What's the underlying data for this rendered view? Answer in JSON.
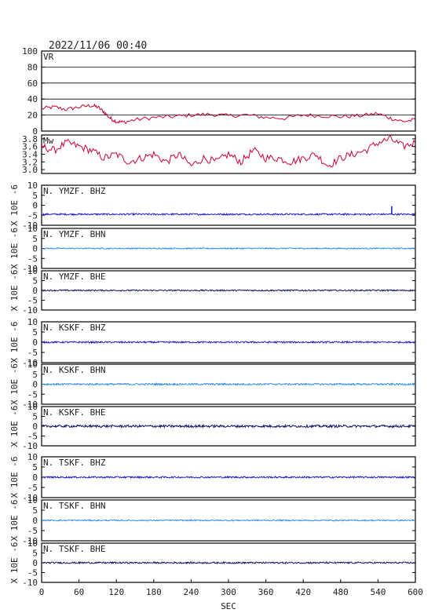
{
  "header": {
    "datetime": "2022/11/06  00:40"
  },
  "x_axis": {
    "label": "SEC",
    "ticks": [
      "0",
      "60",
      "120",
      "180",
      "240",
      "300",
      "360",
      "420",
      "480",
      "540",
      "600"
    ],
    "range": [
      0,
      600
    ]
  },
  "colors": {
    "frame": "#000000",
    "grid": "#000000",
    "vr_line": "#cc0033",
    "mw_line": "#cc0033",
    "bhz": "#1a1acc",
    "bhn": "#2e8ee6",
    "bhe": "#111166"
  },
  "chart_data": [
    {
      "type": "line",
      "label": "VR",
      "ylim": [
        0,
        100
      ],
      "yticks": [
        "0",
        "20",
        "40",
        "60",
        "80",
        "100"
      ],
      "grid": true,
      "x": [
        0,
        20,
        40,
        60,
        80,
        90,
        100,
        110,
        120,
        130,
        150,
        180,
        210,
        240,
        270,
        300,
        330,
        360,
        390,
        420,
        450,
        480,
        510,
        540,
        560,
        580,
        600
      ],
      "values": [
        28,
        30,
        27,
        30,
        32,
        30,
        24,
        16,
        12,
        11,
        14,
        17,
        18,
        20,
        21,
        19,
        20,
        17,
        16,
        20,
        19,
        18,
        19,
        22,
        16,
        12,
        14
      ]
    },
    {
      "type": "line",
      "label": "Mw",
      "ylim": [
        2.9,
        3.9
      ],
      "yticks": [
        "3.0",
        "3.2",
        "3.4",
        "3.6",
        "3.8"
      ],
      "grid": false,
      "x": [
        0,
        20,
        40,
        60,
        80,
        100,
        120,
        140,
        160,
        180,
        200,
        220,
        240,
        260,
        280,
        300,
        320,
        340,
        360,
        380,
        400,
        420,
        440,
        460,
        480,
        500,
        520,
        540,
        560,
        580,
        600
      ],
      "values": [
        3.6,
        3.5,
        3.7,
        3.6,
        3.5,
        3.3,
        3.4,
        3.2,
        3.3,
        3.4,
        3.2,
        3.4,
        3.1,
        3.3,
        3.2,
        3.4,
        3.2,
        3.5,
        3.3,
        3.3,
        3.2,
        3.3,
        3.4,
        3.1,
        3.3,
        3.4,
        3.5,
        3.7,
        3.8,
        3.6,
        3.7
      ]
    },
    {
      "type": "line",
      "label": "N. YMZF. BHZ",
      "color_key": "bhz",
      "ylabel": "X 10E -6",
      "ylim": [
        -10,
        10
      ],
      "yticks": [
        "10",
        "5",
        "0",
        "-5",
        "-10"
      ],
      "offset": -4.5,
      "noise": 0.4,
      "spikes": [
        {
          "x": 562,
          "y": -0.5
        }
      ]
    },
    {
      "type": "line",
      "label": "N. YMZF. BHN",
      "color_key": "bhn",
      "ylabel": "X 10E -6",
      "ylim": [
        -10,
        10
      ],
      "yticks": [
        "10",
        "5",
        "0",
        "-5",
        "-10"
      ],
      "offset": 0,
      "noise": 0.3,
      "spikes": []
    },
    {
      "type": "line",
      "label": "N. YMZF. BHE",
      "color_key": "bhe",
      "ylabel": "X 10E -6",
      "ylim": [
        -10,
        10
      ],
      "yticks": [
        "10",
        "5",
        "0",
        "-5",
        "-10"
      ],
      "offset": 0,
      "noise": 0.35,
      "spikes": []
    },
    {
      "type": "line",
      "label": "N. KSKF. BHZ",
      "color_key": "bhz",
      "ylabel": "X 10E -6",
      "ylim": [
        -10,
        10
      ],
      "yticks": [
        "10",
        "5",
        "0",
        "-5",
        "-10"
      ],
      "offset": 0,
      "noise": 0.4,
      "spikes": []
    },
    {
      "type": "line",
      "label": "N. KSKF. BHN",
      "color_key": "bhn",
      "ylabel": "X 10E -6",
      "ylim": [
        -10,
        10
      ],
      "yticks": [
        "10",
        "5",
        "0",
        "-5",
        "-10"
      ],
      "offset": 0,
      "noise": 0.45,
      "spikes": []
    },
    {
      "type": "line",
      "label": "N. KSKF. BHE",
      "color_key": "bhe",
      "ylabel": "X 10E -6",
      "ylim": [
        -10,
        10
      ],
      "yticks": [
        "10",
        "5",
        "0",
        "-5",
        "-10"
      ],
      "offset": 0,
      "noise": 0.6,
      "spikes": []
    },
    {
      "type": "line",
      "label": "N. TSKF. BHZ",
      "color_key": "bhz",
      "ylabel": "X 10E -6",
      "ylim": [
        -10,
        10
      ],
      "yticks": [
        "10",
        "5",
        "0",
        "-5",
        "-10"
      ],
      "offset": 0,
      "noise": 0.4,
      "spikes": []
    },
    {
      "type": "line",
      "label": "N. TSKF. BHN",
      "color_key": "bhn",
      "ylabel": "X 10E -6",
      "ylim": [
        -10,
        10
      ],
      "yticks": [
        "10",
        "5",
        "0",
        "-5",
        "-10"
      ],
      "offset": 0,
      "noise": 0.3,
      "spikes": []
    },
    {
      "type": "line",
      "label": "N. TSKF. BHE",
      "color_key": "bhe",
      "ylabel": "X 10E -6",
      "ylim": [
        -10,
        10
      ],
      "yticks": [
        "10",
        "5",
        "0",
        "-5",
        "-10"
      ],
      "offset": 0,
      "noise": 0.4,
      "spikes": []
    }
  ]
}
